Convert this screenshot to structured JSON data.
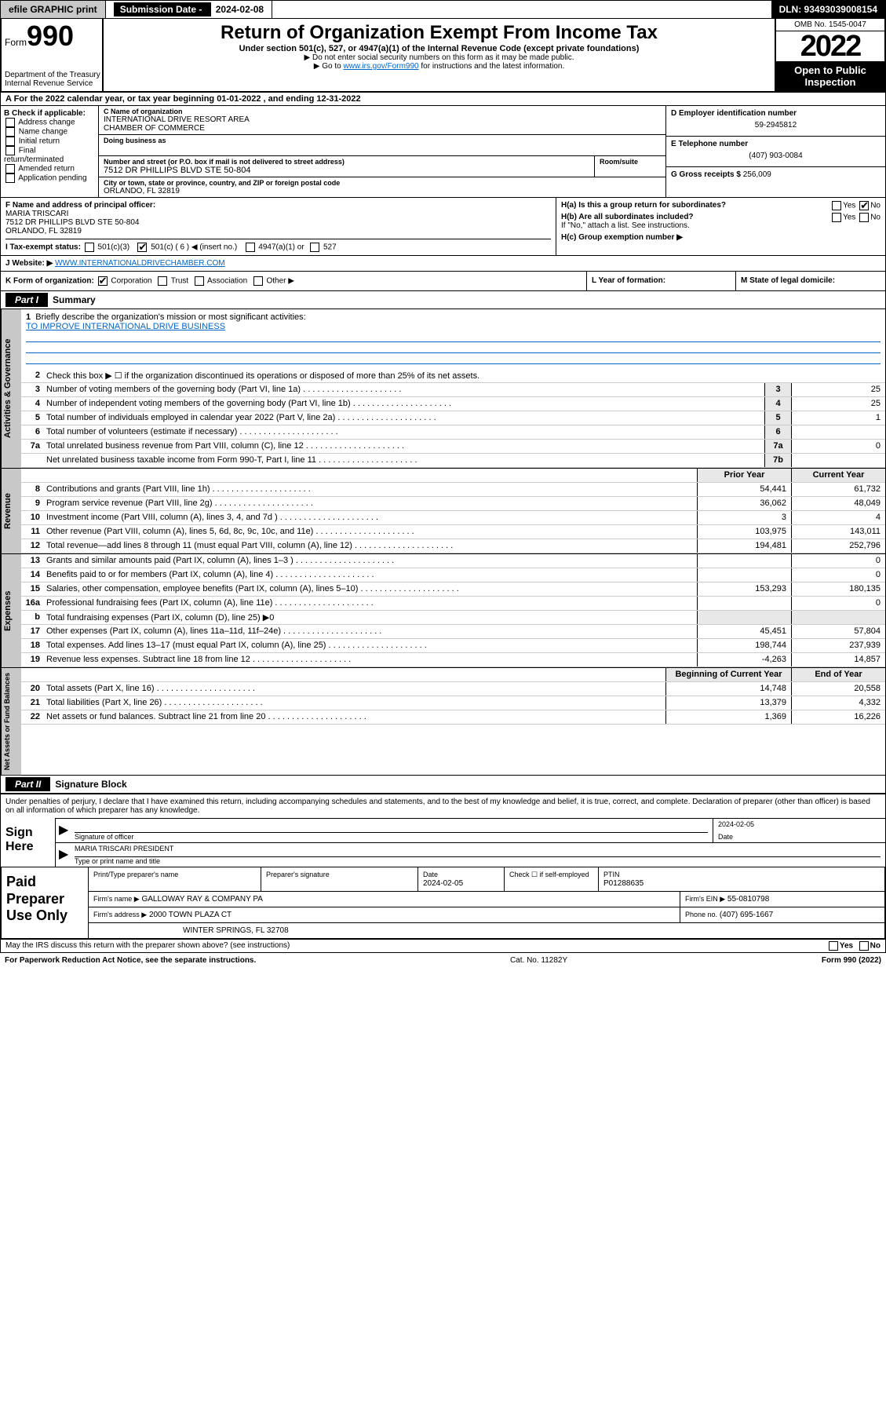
{
  "topbar": {
    "efile": "efile GRAPHIC print",
    "sub_label": "Submission Date - ",
    "sub_date": "2024-02-08",
    "dln": "DLN: 93493039008154"
  },
  "header": {
    "form": "Form",
    "num": "990",
    "dept": "Department of the Treasury\nInternal Revenue Service",
    "title": "Return of Organization Exempt From Income Tax",
    "sub": "Under section 501(c), 527, or 4947(a)(1) of the Internal Revenue Code (except private foundations)",
    "note1": "▶ Do not enter social security numbers on this form as it may be made public.",
    "note2_pre": "▶ Go to ",
    "note2_link": "www.irs.gov/Form990",
    "note2_post": " for instructions and the latest information.",
    "omb": "OMB No. 1545-0047",
    "year": "2022",
    "public": "Open to Public Inspection"
  },
  "line_a": "A For the 2022 calendar year, or tax year beginning 01-01-2022    , and ending 12-31-2022",
  "col_b": {
    "hdr": "B Check if applicable:",
    "opts": [
      "Address change",
      "Name change",
      "Initial return",
      "Final return/terminated",
      "Amended return",
      "Application pending"
    ]
  },
  "col_c": {
    "name_lbl": "C Name of organization",
    "name": "INTERNATIONAL DRIVE RESORT AREA\nCHAMBER OF COMMERCE",
    "dba_lbl": "Doing business as",
    "dba": "",
    "street_lbl": "Number and street (or P.O. box if mail is not delivered to street address)",
    "room_lbl": "Room/suite",
    "street": "7512 DR PHILLIPS BLVD STE 50-804",
    "city_lbl": "City or town, state or province, country, and ZIP or foreign postal code",
    "city": "ORLANDO, FL  32819"
  },
  "col_deg": {
    "d_lbl": "D Employer identification number",
    "d": "59-2945812",
    "e_lbl": "E Telephone number",
    "e": "(407) 903-0084",
    "g_lbl": "G Gross receipts $ ",
    "g": "256,009"
  },
  "col_f": {
    "lbl": "F Name and address of principal officer:",
    "name": "MARIA TRISCARI",
    "addr": "7512 DR PHILLIPS BLVD STE 50-804\nORLANDO, FL  32819"
  },
  "col_h": {
    "a": "H(a)  Is this a group return for subordinates?",
    "b": "H(b)  Are all subordinates included?",
    "b_note": "If \"No,\" attach a list. See instructions.",
    "c": "H(c)  Group exemption number ▶"
  },
  "row_i": {
    "lbl": "I   Tax-exempt status:",
    "c3": "501(c)(3)",
    "c": "501(c) ( 6 ) ◀ (insert no.)",
    "a1": "4947(a)(1) or",
    "527": "527"
  },
  "row_j": {
    "lbl": "J   Website: ▶ ",
    "val": "WWW.INTERNATIONALDRIVECHAMBER.COM"
  },
  "row_klm": {
    "k_lbl": "K Form of organization:",
    "k_opts": [
      "Corporation",
      "Trust",
      "Association",
      "Other ▶"
    ],
    "l": "L Year of formation:",
    "m": "M State of legal domicile:"
  },
  "part1_title": "Summary",
  "mission": {
    "num": "1",
    "label": "Briefly describe the organization's mission or most significant activities:",
    "text": "TO IMPROVE INTERNATIONAL DRIVE BUSINESS"
  },
  "line2": "Check this box ▶ ☐  if the organization discontinued its operations or disposed of more than 25% of its net assets.",
  "gov_lines": [
    {
      "n": "3",
      "d": "Number of voting members of the governing body (Part VI, line 1a)",
      "ln": "3",
      "v": "25"
    },
    {
      "n": "4",
      "d": "Number of independent voting members of the governing body (Part VI, line 1b)",
      "ln": "4",
      "v": "25"
    },
    {
      "n": "5",
      "d": "Total number of individuals employed in calendar year 2022 (Part V, line 2a)",
      "ln": "5",
      "v": "1"
    },
    {
      "n": "6",
      "d": "Total number of volunteers (estimate if necessary)",
      "ln": "6",
      "v": ""
    },
    {
      "n": "7a",
      "d": "Total unrelated business revenue from Part VIII, column (C), line 12",
      "ln": "7a",
      "v": "0"
    },
    {
      "n": "",
      "d": "Net unrelated business taxable income from Form 990-T, Part I, line 11",
      "ln": "7b",
      "v": ""
    }
  ],
  "pycy_hdr": {
    "py": "Prior Year",
    "cy": "Current Year"
  },
  "rev_lines": [
    {
      "n": "8",
      "d": "Contributions and grants (Part VIII, line 1h)",
      "py": "54,441",
      "cy": "61,732"
    },
    {
      "n": "9",
      "d": "Program service revenue (Part VIII, line 2g)",
      "py": "36,062",
      "cy": "48,049"
    },
    {
      "n": "10",
      "d": "Investment income (Part VIII, column (A), lines 3, 4, and 7d )",
      "py": "3",
      "cy": "4"
    },
    {
      "n": "11",
      "d": "Other revenue (Part VIII, column (A), lines 5, 6d, 8c, 9c, 10c, and 11e)",
      "py": "103,975",
      "cy": "143,011"
    },
    {
      "n": "12",
      "d": "Total revenue—add lines 8 through 11 (must equal Part VIII, column (A), line 12)",
      "py": "194,481",
      "cy": "252,796"
    }
  ],
  "exp_lines": [
    {
      "n": "13",
      "d": "Grants and similar amounts paid (Part IX, column (A), lines 1–3 )",
      "py": "",
      "cy": "0"
    },
    {
      "n": "14",
      "d": "Benefits paid to or for members (Part IX, column (A), line 4)",
      "py": "",
      "cy": "0"
    },
    {
      "n": "15",
      "d": "Salaries, other compensation, employee benefits (Part IX, column (A), lines 5–10)",
      "py": "153,293",
      "cy": "180,135"
    },
    {
      "n": "16a",
      "d": "Professional fundraising fees (Part IX, column (A), line 11e)",
      "py": "",
      "cy": "0"
    },
    {
      "n": "b",
      "d": "Total fundraising expenses (Part IX, column (D), line 25) ▶0",
      "py": "—",
      "cy": "—"
    },
    {
      "n": "17",
      "d": "Other expenses (Part IX, column (A), lines 11a–11d, 11f–24e)",
      "py": "45,451",
      "cy": "57,804"
    },
    {
      "n": "18",
      "d": "Total expenses. Add lines 13–17 (must equal Part IX, column (A), line 25)",
      "py": "198,744",
      "cy": "237,939"
    },
    {
      "n": "19",
      "d": "Revenue less expenses. Subtract line 18 from line 12",
      "py": "-4,263",
      "cy": "14,857"
    }
  ],
  "na_hdr": {
    "boy": "Beginning of Current Year",
    "eoy": "End of Year"
  },
  "na_lines": [
    {
      "n": "20",
      "d": "Total assets (Part X, line 16)",
      "py": "14,748",
      "cy": "20,558"
    },
    {
      "n": "21",
      "d": "Total liabilities (Part X, line 26)",
      "py": "13,379",
      "cy": "4,332"
    },
    {
      "n": "22",
      "d": "Net assets or fund balances. Subtract line 21 from line 20",
      "py": "1,369",
      "cy": "16,226"
    }
  ],
  "part2_title": "Signature Block",
  "sig_text": "Under penalties of perjury, I declare that I have examined this return, including accompanying schedules and statements, and to the best of my knowledge and belief, it is true, correct, and complete. Declaration of preparer (other than officer) is based on all information of which preparer has any knowledge.",
  "sign_here": "Sign Here",
  "sig_officer_lbl": "Signature of officer",
  "sig_date_lbl": "Date",
  "sig_date": "2024-02-05",
  "sig_name": "MARIA TRISCARI PRESIDENT",
  "sig_name_lbl": "Type or print name and title",
  "paid_label": "Paid Preparer Use Only",
  "paid": {
    "r1": {
      "c1": "Print/Type preparer's name",
      "c2": "Preparer's signature",
      "c3": "Date",
      "c3v": "2024-02-05",
      "c4": "Check ☐ if self-employed",
      "c5": "PTIN",
      "c5v": "P01288635"
    },
    "r2": {
      "c1": "Firm's name    ▶",
      "c1v": "GALLOWAY RAY & COMPANY PA",
      "c2": "Firm's EIN ▶",
      "c2v": "55-0810798"
    },
    "r3": {
      "c1": "Firm's address ▶",
      "c1v": "2000 TOWN PLAZA CT",
      "c2": "Phone no.",
      "c2v": "(407) 695-1667"
    },
    "r4": {
      "c1v": "WINTER SPRINGS, FL 32708"
    }
  },
  "last": {
    "q": "May the IRS discuss this return with the preparer shown above? (see instructions)",
    "yes": "Yes",
    "no": "No"
  },
  "footer": {
    "l": "For Paperwork Reduction Act Notice, see the separate instructions.",
    "m": "Cat. No. 11282Y",
    "r": "Form 990 (2022)"
  },
  "side_labels": {
    "ag": "Activities & Governance",
    "rev": "Revenue",
    "exp": "Expenses",
    "na": "Net Assets or Fund Balances"
  }
}
